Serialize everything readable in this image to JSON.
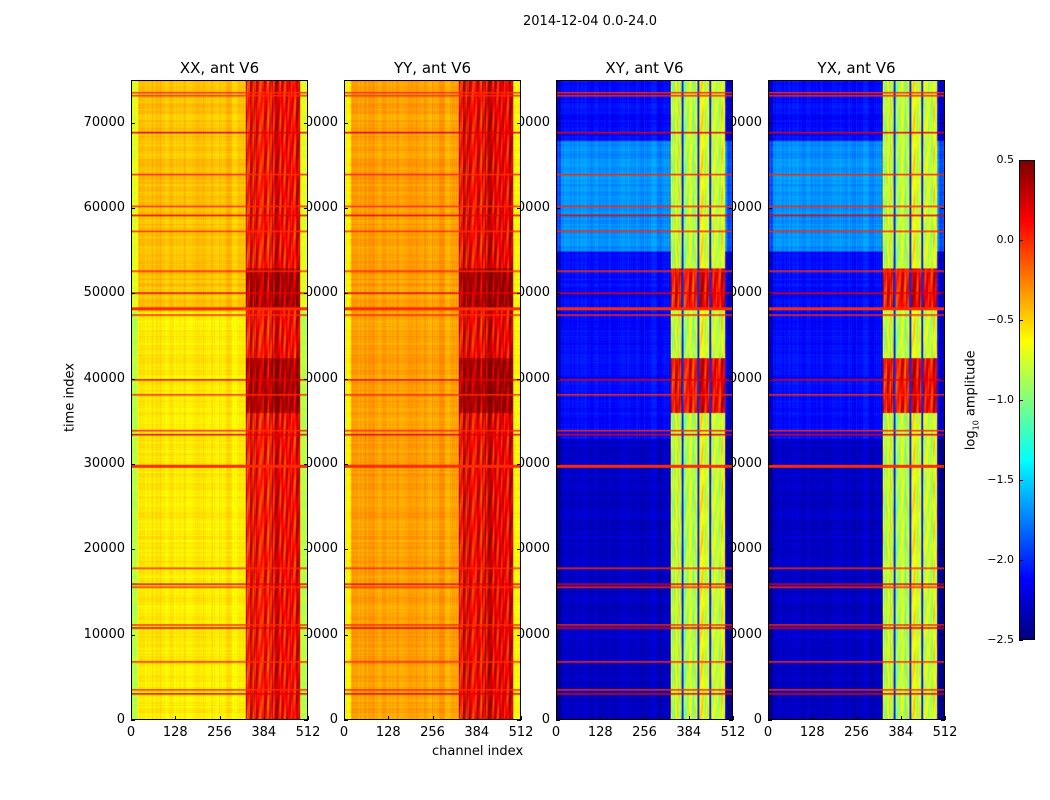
{
  "chart_data": {
    "type": "heatmap",
    "title": "2014-12-04 0.0-24.0",
    "xlabel": "channel index",
    "ylabel": "time index",
    "xlim": [
      0,
      512
    ],
    "ylim": [
      0,
      75000
    ],
    "xticks": [
      "0",
      "128",
      "256",
      "384",
      "512"
    ],
    "yticks": [
      "0",
      "10000",
      "20000",
      "30000",
      "40000",
      "50000",
      "60000",
      "70000"
    ],
    "panels": [
      {
        "title": "XX, ant V6",
        "base_log_amp": -0.45,
        "rfi_band_log_amp": 0.1,
        "rfi_band_channels": [
          330,
          490
        ]
      },
      {
        "title": "YY, ant V6",
        "base_log_amp": -0.35,
        "rfi_band_log_amp": 0.15,
        "rfi_band_channels": [
          330,
          490
        ]
      },
      {
        "title": "XY, ant V6",
        "base_log_amp": -2.1,
        "rfi_band_log_amp": -0.8,
        "rfi_band_channels": [
          330,
          490
        ]
      },
      {
        "title": "YX, ant V6",
        "base_log_amp": -2.1,
        "rfi_band_log_amp": -0.8,
        "rfi_band_channels": [
          330,
          490
        ]
      }
    ],
    "flagged_time_rows": [
      3000,
      3500,
      6800,
      10800,
      11100,
      15600,
      15900,
      17800,
      29900,
      33500,
      34000,
      38200,
      40000,
      47600,
      48400,
      50100,
      52700,
      57400,
      59300,
      60400,
      64100,
      69000,
      73400,
      73700
    ],
    "colorbar": {
      "label": "log10 amplitude",
      "label_main": "log",
      "label_sub": "10",
      "label_rest": " amplitude",
      "range": [
        -2.5,
        0.5
      ],
      "ticks": [
        "0.5",
        "0.0",
        "−0.5",
        "−1.0",
        "−1.5",
        "−2.0",
        "−2.5"
      ],
      "colormap": "jet"
    }
  }
}
